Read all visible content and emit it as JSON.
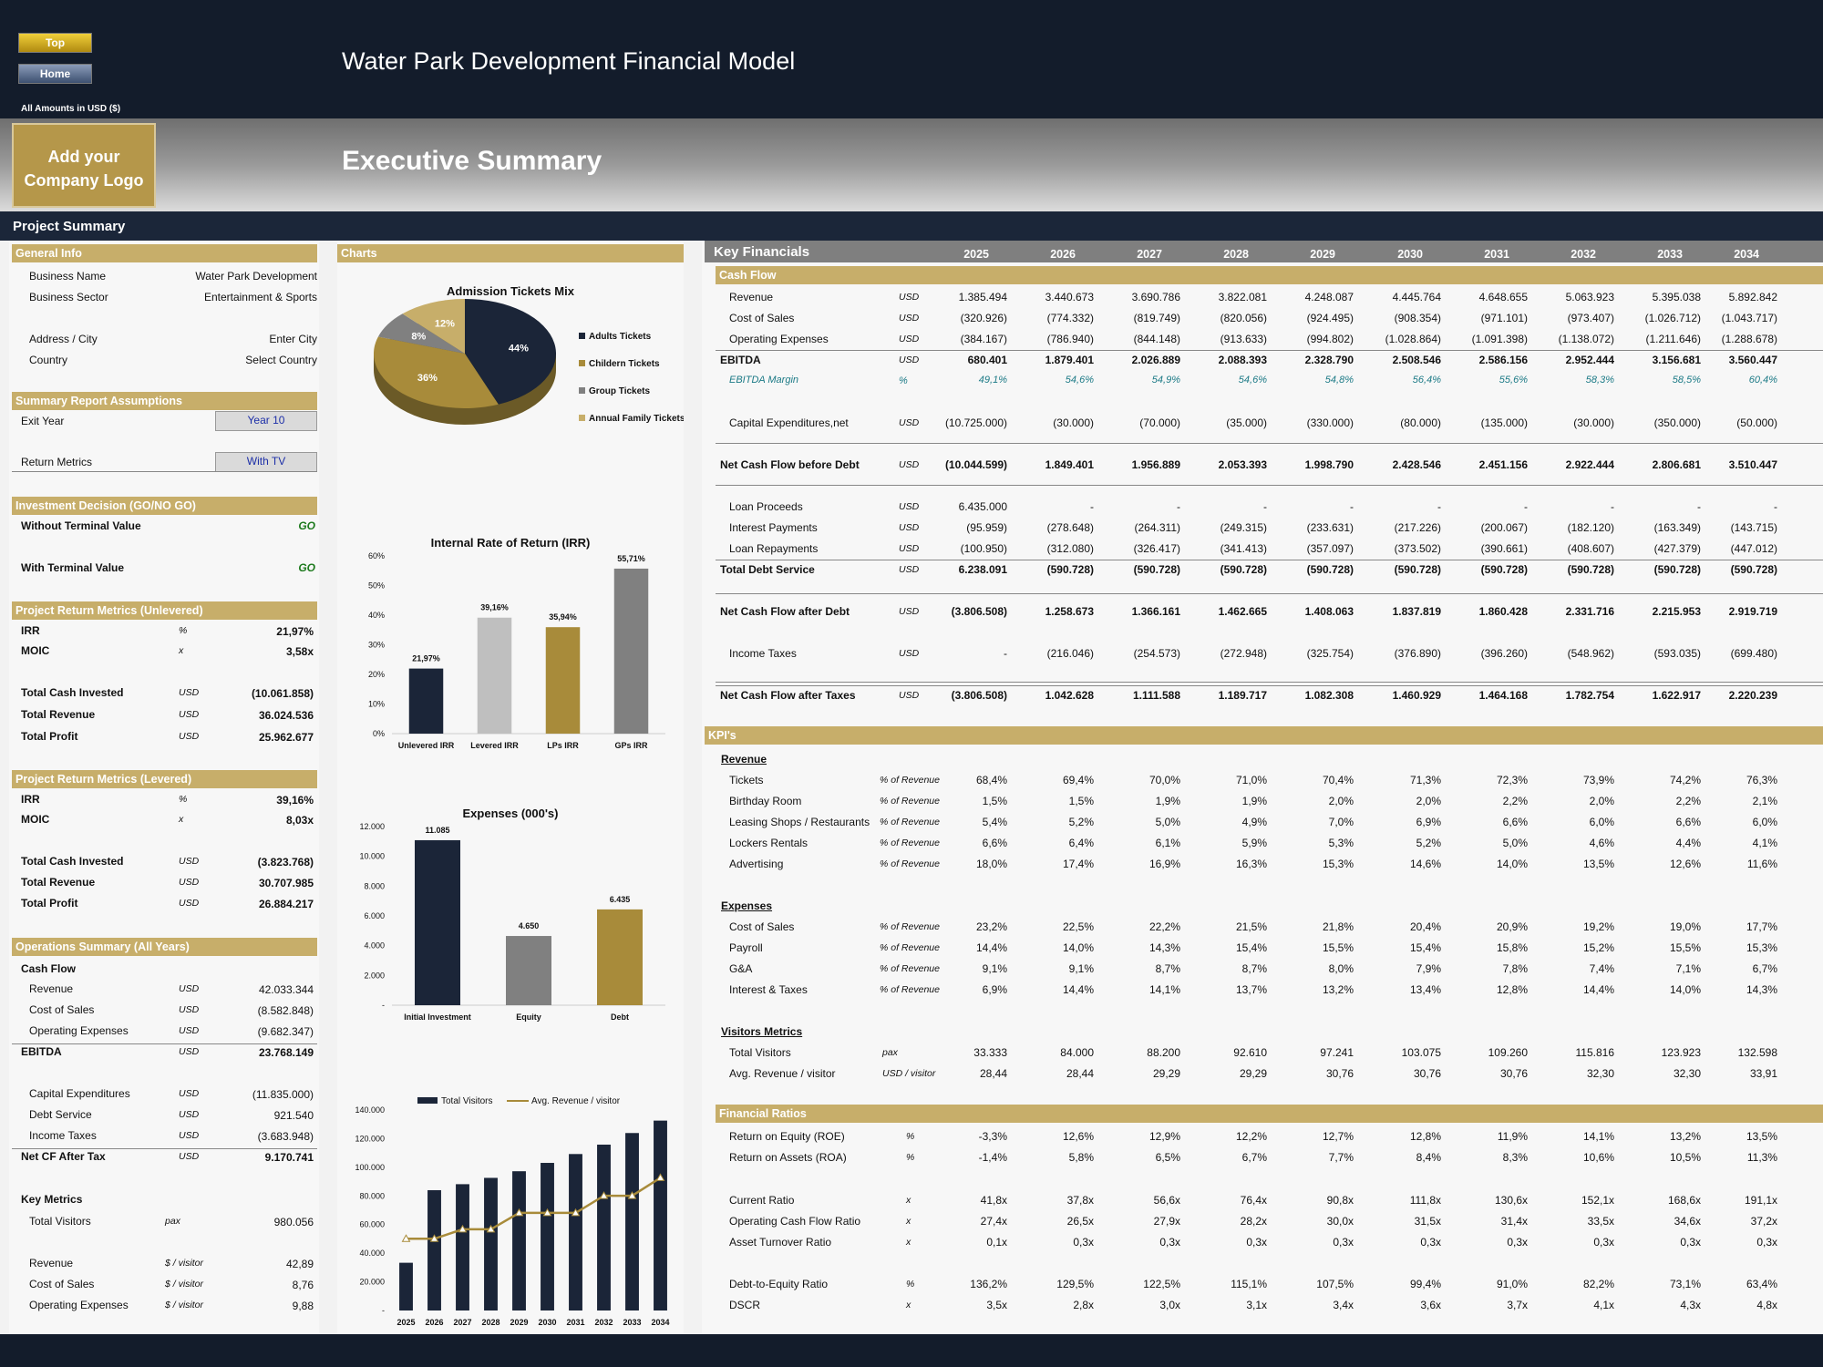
{
  "header": {
    "top_btn": "Top",
    "home_btn": "Home",
    "title": "Water Park Development Financial Model",
    "amounts": "All Amounts in  USD ($)",
    "logo": "Add your Company Logo",
    "page_title": "Executive Summary",
    "project_summary": "Project Summary"
  },
  "general": {
    "title": "General Info",
    "rows": [
      [
        "Business Name",
        "Water Park Development"
      ],
      [
        "Business Sector",
        "Entertainment & Sports"
      ],
      [
        "Address / City",
        "Enter City"
      ],
      [
        "Country",
        "Select Country"
      ]
    ]
  },
  "assumptions": {
    "title": "Summary  Report Assumptions",
    "exit_label": "Exit Year",
    "exit_value": "Year 10",
    "return_label": "Return Metrics",
    "return_value": "With TV"
  },
  "decision": {
    "title": "Investment Decision (GO/NO GO)",
    "rows": [
      [
        "Without Terminal Value",
        "GO"
      ],
      [
        "With Terminal Value",
        "GO"
      ]
    ]
  },
  "unlevered": {
    "title": "Project Return Metrics (Unlevered)",
    "rows": [
      [
        "IRR",
        "%",
        "21,97%"
      ],
      [
        "MOIC",
        "x",
        "3,58x"
      ],
      [
        "Total Cash Invested",
        "USD",
        "(10.061.858)"
      ],
      [
        "Total Revenue",
        "USD",
        "36.024.536"
      ],
      [
        "Total Profit",
        "USD",
        "25.962.677"
      ]
    ]
  },
  "levered": {
    "title": "Project Return Metrics (Levered)",
    "rows": [
      [
        "IRR",
        "%",
        "39,16%"
      ],
      [
        "MOIC",
        "x",
        "8,03x"
      ],
      [
        "Total Cash Invested",
        "USD",
        "(3.823.768)"
      ],
      [
        "Total Revenue",
        "USD",
        "30.707.985"
      ],
      [
        "Total Profit",
        "USD",
        "26.884.217"
      ]
    ]
  },
  "operations": {
    "title": "Operations Summary (All Years)",
    "cash_flow": "Cash Flow",
    "rows": [
      [
        "Revenue",
        "USD",
        "42.033.344"
      ],
      [
        "Cost of Sales",
        "USD",
        "(8.582.848)"
      ],
      [
        "Operating Expenses",
        "USD",
        "(9.682.347)"
      ],
      [
        "EBITDA",
        "USD",
        "23.768.149"
      ],
      [
        "Capital Expenditures",
        "USD",
        "(11.835.000)"
      ],
      [
        "Debt Service",
        "USD",
        "921.540"
      ],
      [
        "Income Taxes",
        "USD",
        "(3.683.948)"
      ],
      [
        "Net CF After Tax",
        "USD",
        "9.170.741"
      ]
    ],
    "key_metrics": "Key Metrics",
    "metrics": [
      [
        "Total Visitors",
        "pax",
        "980.056"
      ],
      [
        "Revenue",
        "$ / visitor",
        "42,89"
      ],
      [
        "Cost of Sales",
        "$ / visitor",
        "8,76"
      ],
      [
        "Operating Expenses",
        "$ / visitor",
        "9,88"
      ]
    ]
  },
  "charts_title": "Charts",
  "chart_data": [
    {
      "type": "pie",
      "title": "Admission Tickets Mix",
      "labels": [
        "Adults Tickets",
        "Childern Tickets",
        "Group Tickets",
        "Annual Family Tickets"
      ],
      "values": [
        44,
        36,
        8,
        12
      ],
      "value_labels": [
        "44%",
        "36%",
        "8%",
        "12%"
      ],
      "colors": [
        "#1b2538",
        "#a88b3a",
        "#808080",
        "#c7ae6a"
      ]
    },
    {
      "type": "bar",
      "title": "Internal Rate of Return (IRR)",
      "categories": [
        "Unlevered IRR",
        "Levered IRR",
        "LPs IRR",
        "GPs IRR"
      ],
      "values": [
        21.97,
        39.16,
        35.94,
        55.71
      ],
      "value_labels": [
        "21,97%",
        "39,16%",
        "35,94%",
        "55,71%"
      ],
      "ylim": [
        0,
        60
      ],
      "yticks": [
        "0%",
        "10%",
        "20%",
        "30%",
        "40%",
        "50%",
        "60%"
      ],
      "colors": [
        "#1b2538",
        "#bfbfbf",
        "#a88b3a",
        "#808080"
      ]
    },
    {
      "type": "bar",
      "title": "Expenses (000's)",
      "categories": [
        "Initial Investment",
        "Equity",
        "Debt"
      ],
      "values": [
        11085,
        4650,
        6435
      ],
      "value_labels": [
        "11.085",
        "4.650",
        "6.435"
      ],
      "ylim": [
        0,
        12000
      ],
      "yticks": [
        "-",
        "2.000",
        "4.000",
        "6.000",
        "8.000",
        "10.000",
        "12.000"
      ],
      "colors": [
        "#1b2538",
        "#808080",
        "#a88b3a"
      ]
    },
    {
      "type": "bar",
      "title": "",
      "categories": [
        "2025",
        "2026",
        "2027",
        "2028",
        "2029",
        "2030",
        "2031",
        "2032",
        "2033",
        "2034"
      ],
      "series": [
        {
          "name": "Total Visitors",
          "values": [
            33333,
            84000,
            88200,
            92610,
            97241,
            103075,
            109260,
            115816,
            123923,
            132598
          ]
        },
        {
          "name": "Avg. Revenue / visitor",
          "values": [
            28.44,
            28.44,
            29.29,
            29.29,
            30.76,
            30.76,
            30.76,
            32.3,
            32.3,
            33.91
          ]
        }
      ],
      "ylim": [
        0,
        140000
      ],
      "yticks": [
        "-",
        "20.000",
        "40.000",
        "60.000",
        "80.000",
        "100.000",
        "120.000",
        "140.000"
      ],
      "colors": [
        "#1b2538",
        "#a88b3a"
      ]
    }
  ],
  "kf": {
    "title": "Key Financials",
    "years": [
      "2025",
      "2026",
      "2027",
      "2028",
      "2029",
      "2030",
      "2031",
      "2032",
      "2033",
      "2034"
    ],
    "cash_flow_title": "Cash Flow",
    "cf_rows": [
      {
        "label": "Revenue",
        "unit": "USD",
        "vals": [
          "1.385.494",
          "3.440.673",
          "3.690.786",
          "3.822.081",
          "4.248.087",
          "4.445.764",
          "4.648.655",
          "5.063.923",
          "5.395.038",
          "5.892.842"
        ]
      },
      {
        "label": "Cost of Sales",
        "unit": "USD",
        "vals": [
          "(320.926)",
          "(774.332)",
          "(819.749)",
          "(820.056)",
          "(924.495)",
          "(908.354)",
          "(971.101)",
          "(973.407)",
          "(1.026.712)",
          "(1.043.717)"
        ]
      },
      {
        "label": "Operating Expenses",
        "unit": "USD",
        "vals": [
          "(384.167)",
          "(786.940)",
          "(844.148)",
          "(913.633)",
          "(994.802)",
          "(1.028.864)",
          "(1.091.398)",
          "(1.138.072)",
          "(1.211.646)",
          "(1.288.678)"
        ]
      },
      {
        "label": "EBITDA",
        "unit": "USD",
        "vals": [
          "680.401",
          "1.879.401",
          "2.026.889",
          "2.088.393",
          "2.328.790",
          "2.508.546",
          "2.586.156",
          "2.952.444",
          "3.156.681",
          "3.560.447"
        ]
      },
      {
        "label": "EBITDA Margin",
        "unit": "%",
        "vals": [
          "49,1%",
          "54,6%",
          "54,9%",
          "54,6%",
          "54,8%",
          "56,4%",
          "55,6%",
          "58,3%",
          "58,5%",
          "60,4%"
        ]
      },
      {
        "label": "Capital Expenditures,net",
        "unit": "USD",
        "vals": [
          "(10.725.000)",
          "(30.000)",
          "(70.000)",
          "(35.000)",
          "(330.000)",
          "(80.000)",
          "(135.000)",
          "(30.000)",
          "(350.000)",
          "(50.000)"
        ]
      },
      {
        "label": "Net Cash Flow before Debt",
        "unit": "USD",
        "vals": [
          "(10.044.599)",
          "1.849.401",
          "1.956.889",
          "2.053.393",
          "1.998.790",
          "2.428.546",
          "2.451.156",
          "2.922.444",
          "2.806.681",
          "3.510.447"
        ]
      },
      {
        "label": "Loan Proceeds",
        "unit": "USD",
        "vals": [
          "6.435.000",
          "-",
          "-",
          "-",
          "-",
          "-",
          "-",
          "-",
          "-",
          "-"
        ]
      },
      {
        "label": "Interest Payments",
        "unit": "USD",
        "vals": [
          "(95.959)",
          "(278.648)",
          "(264.311)",
          "(249.315)",
          "(233.631)",
          "(217.226)",
          "(200.067)",
          "(182.120)",
          "(163.349)",
          "(143.715)"
        ]
      },
      {
        "label": "Loan Repayments",
        "unit": "USD",
        "vals": [
          "(100.950)",
          "(312.080)",
          "(326.417)",
          "(341.413)",
          "(357.097)",
          "(373.502)",
          "(390.661)",
          "(408.607)",
          "(427.379)",
          "(447.012)"
        ]
      },
      {
        "label": "Total Debt Service",
        "unit": "USD",
        "vals": [
          "6.238.091",
          "(590.728)",
          "(590.728)",
          "(590.728)",
          "(590.728)",
          "(590.728)",
          "(590.728)",
          "(590.728)",
          "(590.728)",
          "(590.728)"
        ]
      },
      {
        "label": "Net Cash Flow after Debt",
        "unit": "USD",
        "vals": [
          "(3.806.508)",
          "1.258.673",
          "1.366.161",
          "1.462.665",
          "1.408.063",
          "1.837.819",
          "1.860.428",
          "2.331.716",
          "2.215.953",
          "2.919.719"
        ]
      },
      {
        "label": "Income Taxes",
        "unit": "USD",
        "vals": [
          "-",
          "(216.046)",
          "(254.573)",
          "(272.948)",
          "(325.754)",
          "(376.890)",
          "(396.260)",
          "(548.962)",
          "(593.035)",
          "(699.480)"
        ]
      },
      {
        "label": "Net Cash Flow after Taxes",
        "unit": "USD",
        "vals": [
          "(3.806.508)",
          "1.042.628",
          "1.111.588",
          "1.189.717",
          "1.082.308",
          "1.460.929",
          "1.464.168",
          "1.782.754",
          "1.622.917",
          "2.220.239"
        ]
      }
    ],
    "kpi_title": "KPI's",
    "revenue_title": "Revenue",
    "rev_rows": [
      {
        "label": "Tickets",
        "unit": "% of Revenue",
        "vals": [
          "68,4%",
          "69,4%",
          "70,0%",
          "71,0%",
          "70,4%",
          "71,3%",
          "72,3%",
          "73,9%",
          "74,2%",
          "76,3%"
        ]
      },
      {
        "label": "Birthday Room",
        "unit": "% of Revenue",
        "vals": [
          "1,5%",
          "1,5%",
          "1,9%",
          "1,9%",
          "2,0%",
          "2,0%",
          "2,2%",
          "2,0%",
          "2,2%",
          "2,1%"
        ]
      },
      {
        "label": "Leasing Shops / Restaurants",
        "unit": "% of Revenue",
        "vals": [
          "5,4%",
          "5,2%",
          "5,0%",
          "4,9%",
          "7,0%",
          "6,9%",
          "6,6%",
          "6,0%",
          "6,6%",
          "6,0%"
        ]
      },
      {
        "label": "Lockers Rentals",
        "unit": "% of Revenue",
        "vals": [
          "6,6%",
          "6,4%",
          "6,1%",
          "5,9%",
          "5,3%",
          "5,2%",
          "5,0%",
          "4,6%",
          "4,4%",
          "4,1%"
        ]
      },
      {
        "label": "Advertising",
        "unit": "% of Revenue",
        "vals": [
          "18,0%",
          "17,4%",
          "16,9%",
          "16,3%",
          "15,3%",
          "14,6%",
          "14,0%",
          "13,5%",
          "12,6%",
          "11,6%"
        ]
      }
    ],
    "expenses_title": "Expenses",
    "exp_rows": [
      {
        "label": "Cost of Sales",
        "unit": "% of Revenue",
        "vals": [
          "23,2%",
          "22,5%",
          "22,2%",
          "21,5%",
          "21,8%",
          "20,4%",
          "20,9%",
          "19,2%",
          "19,0%",
          "17,7%"
        ]
      },
      {
        "label": "Payroll",
        "unit": "% of Revenue",
        "vals": [
          "14,4%",
          "14,0%",
          "14,3%",
          "15,4%",
          "15,5%",
          "15,4%",
          "15,8%",
          "15,2%",
          "15,5%",
          "15,3%"
        ]
      },
      {
        "label": "G&A",
        "unit": "% of Revenue",
        "vals": [
          "9,1%",
          "9,1%",
          "8,7%",
          "8,7%",
          "8,0%",
          "7,9%",
          "7,8%",
          "7,4%",
          "7,1%",
          "6,7%"
        ]
      },
      {
        "label": "Interest & Taxes",
        "unit": "% of Revenue",
        "vals": [
          "6,9%",
          "14,4%",
          "14,1%",
          "13,7%",
          "13,2%",
          "13,4%",
          "12,8%",
          "14,4%",
          "14,0%",
          "14,3%"
        ]
      }
    ],
    "visitors_title": "Visitors Metrics",
    "vis_rows": [
      {
        "label": "Total Visitors",
        "unit": "pax",
        "vals": [
          "33.333",
          "84.000",
          "88.200",
          "92.610",
          "97.241",
          "103.075",
          "109.260",
          "115.816",
          "123.923",
          "132.598"
        ]
      },
      {
        "label": "Avg. Revenue / visitor",
        "unit": "USD / visitor",
        "vals": [
          "28,44",
          "28,44",
          "29,29",
          "29,29",
          "30,76",
          "30,76",
          "30,76",
          "32,30",
          "32,30",
          "33,91"
        ]
      }
    ],
    "ratios_title": "Financial Ratios",
    "ratio_rows": [
      {
        "label": "Return on Equity (ROE)",
        "unit": "%",
        "vals": [
          "-3,3%",
          "12,6%",
          "12,9%",
          "12,2%",
          "12,7%",
          "12,8%",
          "11,9%",
          "14,1%",
          "13,2%",
          "13,5%"
        ]
      },
      {
        "label": "Return on Assets (ROA)",
        "unit": "%",
        "vals": [
          "-1,4%",
          "5,8%",
          "6,5%",
          "6,7%",
          "7,7%",
          "8,4%",
          "8,3%",
          "10,6%",
          "10,5%",
          "11,3%"
        ]
      },
      {
        "label": "Current Ratio",
        "unit": "x",
        "vals": [
          "41,8x",
          "37,8x",
          "56,6x",
          "76,4x",
          "90,8x",
          "111,8x",
          "130,6x",
          "152,1x",
          "168,6x",
          "191,1x"
        ]
      },
      {
        "label": "Operating Cash Flow Ratio",
        "unit": "x",
        "vals": [
          "27,4x",
          "26,5x",
          "27,9x",
          "28,2x",
          "30,0x",
          "31,5x",
          "31,4x",
          "33,5x",
          "34,6x",
          "37,2x"
        ]
      },
      {
        "label": "Asset Turnover Ratio",
        "unit": "x",
        "vals": [
          "0,1x",
          "0,3x",
          "0,3x",
          "0,3x",
          "0,3x",
          "0,3x",
          "0,3x",
          "0,3x",
          "0,3x",
          "0,3x"
        ]
      },
      {
        "label": "Debt-to-Equity Ratio",
        "unit": "%",
        "vals": [
          "136,2%",
          "129,5%",
          "122,5%",
          "115,1%",
          "107,5%",
          "99,4%",
          "91,0%",
          "82,2%",
          "73,1%",
          "63,4%"
        ]
      },
      {
        "label": "DSCR",
        "unit": "x",
        "vals": [
          "3,5x",
          "2,8x",
          "3,0x",
          "3,1x",
          "3,4x",
          "3,6x",
          "3,7x",
          "4,1x",
          "4,3x",
          "4,8x"
        ]
      }
    ]
  }
}
